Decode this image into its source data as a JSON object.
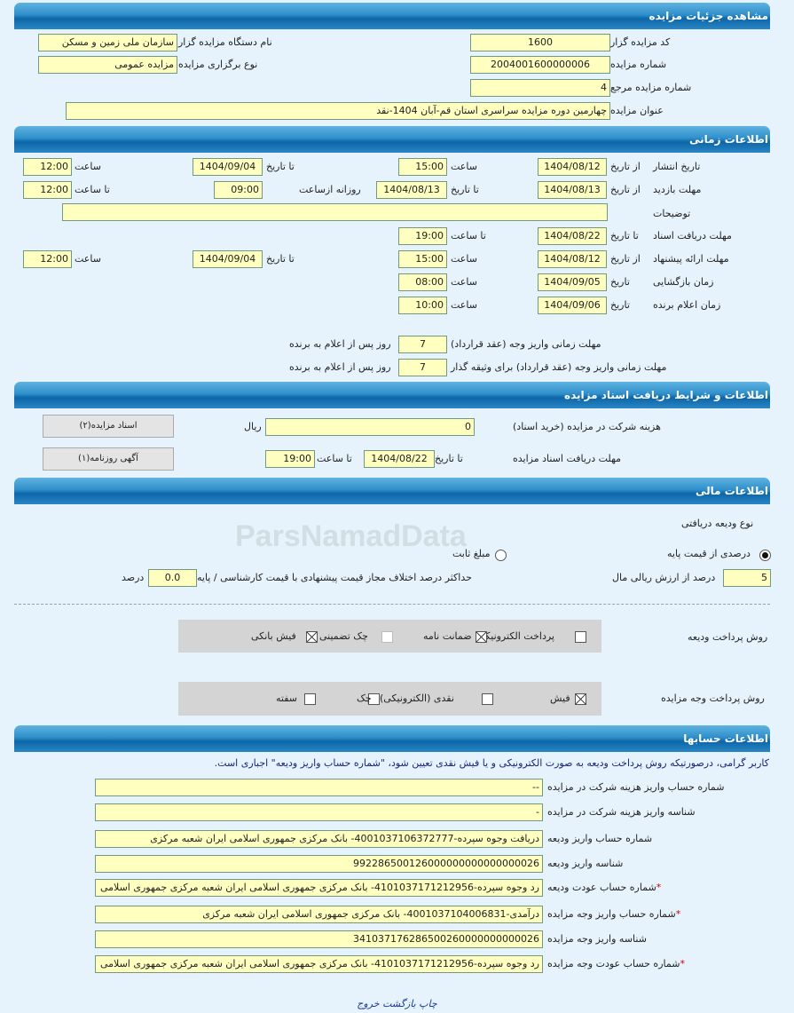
{
  "watermark": "ParsNamadData",
  "sections": {
    "details": "مشاهده جزئیات مزایده",
    "time": "اطلاعات زمانی",
    "docs": "اطلاعات و شرایط دریافت اسناد مزایده",
    "finance": "اطلاعات مالی",
    "accounts": "اطلاعات حسابها"
  },
  "details": {
    "code_label": "کد مزایده گزار",
    "code": "1600",
    "number_label": "شماره مزایده",
    "number": "2004001600000006",
    "ref_label": "شماره مزایده مرجع",
    "ref": "4",
    "title_label": "عنوان مزایده",
    "title": "چهارمین دوره مزایده سراسری استان قم-آبان 1404-نقد",
    "org_label": "نام دستگاه مزایده گزار",
    "org": "سازمان ملی زمین و مسکن",
    "type_label": "نوع برگزاری مزایده",
    "type": "مزایده عمومی"
  },
  "time": {
    "from_date": "از تاریخ",
    "to_date": "تا تاریخ",
    "date": "تاریخ",
    "hour": "ساعت",
    "to_hour": "تا ساعت",
    "daily_from": "روزانه ازساعت",
    "publish": {
      "label": "تاریخ انتشار",
      "from": "1404/08/12",
      "from_time": "15:00",
      "to": "1404/09/04",
      "to_time": "12:00"
    },
    "visit": {
      "label": "مهلت بازدید",
      "from": "1404/08/13",
      "to": "1404/08/13",
      "daily": "09:00",
      "to_time": "12:00"
    },
    "desc": {
      "label": "توضیحات",
      "value": ""
    },
    "docs": {
      "label": "مهلت دریافت اسناد",
      "to": "1404/08/22",
      "to_time": "19:00"
    },
    "offer": {
      "label": "مهلت ارائه پیشنهاد",
      "from": "1404/08/12",
      "from_time": "15:00",
      "to": "1404/09/04",
      "to_time": "12:00"
    },
    "open": {
      "label": "زمان بازگشایی",
      "date": "1404/09/05",
      "time": "08:00"
    },
    "winner": {
      "label": "زمان اعلام برنده",
      "date": "1404/09/06",
      "time": "10:00"
    },
    "pay1": {
      "label": "مهلت زمانی واریز وجه (عقد قرارداد)",
      "value": "7",
      "suffix": "روز پس از اعلام به برنده"
    },
    "pay2": {
      "label": "مهلت زمانی واریز وجه (عقد قرارداد) برای وثیقه گذار",
      "value": "7",
      "suffix": "روز پس از اعلام به برنده"
    }
  },
  "docs": {
    "fee_label": "هزینه شرکت در مزایده (خرید اسناد)",
    "fee": "0",
    "currency": "ریال",
    "deadline_label": "مهلت دریافت اسناد مزایده",
    "to_date": "تا تاریخ",
    "date": "1404/08/22",
    "to_hour": "تا ساعت",
    "time": "19:00",
    "btn_docs": "اسناد مزایده(۲)",
    "btn_ad": "آگهی روزنامه(۱)"
  },
  "finance": {
    "deposit_type": "نوع ودیعه دریافتی",
    "radio_percent": "درصدی از قیمت پایه",
    "radio_percent_selected": true,
    "radio_fixed": "مبلغ ثابت",
    "percent": "5",
    "percent_suffix": "درصد از ارزش ریالی مال",
    "max_diff_label": "حداکثر درصد اختلاف مجاز قیمت پیشنهادی با قیمت کارشناسی / پایه",
    "max_diff": "0.0",
    "max_diff_suffix": "درصد",
    "deposit_method_label": "روش پرداخت ودیعه",
    "deposit_methods": [
      {
        "label": "پرداخت الکترونیکی",
        "checked": false
      },
      {
        "label": "ضمانت نامه",
        "checked": true
      },
      {
        "label": "چک تضمینی",
        "checked": false
      },
      {
        "label": "فیش بانکی",
        "checked": true
      }
    ],
    "payment_method_label": "روش پرداخت وجه مزایده",
    "payment_methods": [
      {
        "label": "فیش",
        "checked": true
      },
      {
        "label": "نقدی (الکترونیکی)",
        "checked": false
      },
      {
        "label": "چک",
        "checked": false
      },
      {
        "label": "سفته",
        "checked": false
      }
    ]
  },
  "accounts": {
    "note": "کاربر گرامی، درصورتیکه روش پرداخت ودیعه به صورت الکترونیکی و یا فیش نقدی تعیین شود، \"شماره حساب واریز ودیعه\" اجباری است.",
    "rows": [
      {
        "label": "شماره حساب واریز هزینه شرکت در مزایده",
        "value": "--",
        "required": false
      },
      {
        "label": "شناسه واریز هزینه شرکت در مزایده",
        "value": "-",
        "required": false
      },
      {
        "label": "شماره حساب واریز ودیعه",
        "value": "دریافت وجوه سپرده-4001037106372777- بانک مرکزی جمهوری اسلامی ایران شعبه مرکزی",
        "required": false
      },
      {
        "label": "شناسه واریز ودیعه",
        "value": "992286500126000000000000000026",
        "required": false
      },
      {
        "label": "شماره حساب عودت ودیعه",
        "value": "رد وجوه سپرده-4101037171212956- بانک مرکزی جمهوری اسلامی ایران شعبه مرکزی جمهوری اسلامی",
        "required": true
      },
      {
        "label": "شماره حساب واریز وجه مزایده",
        "value": "درآمدی-4001037104006831- بانک مرکزی جمهوری اسلامی ایران شعبه مرکزی",
        "required": true
      },
      {
        "label": "شناسه واریز وجه مزایده",
        "value": "341037176286500260000000000026",
        "required": false
      },
      {
        "label": "شماره حساب عودت وجه مزایده",
        "value": "رد وجوه سپرده-4101037171212956- بانک مرکزی جمهوری اسلامی ایران شعبه مرکزی جمهوری اسلامی",
        "required": true
      }
    ]
  },
  "footer": {
    "print": "چاپ",
    "back": "بازگشت",
    "exit": "خروج"
  }
}
